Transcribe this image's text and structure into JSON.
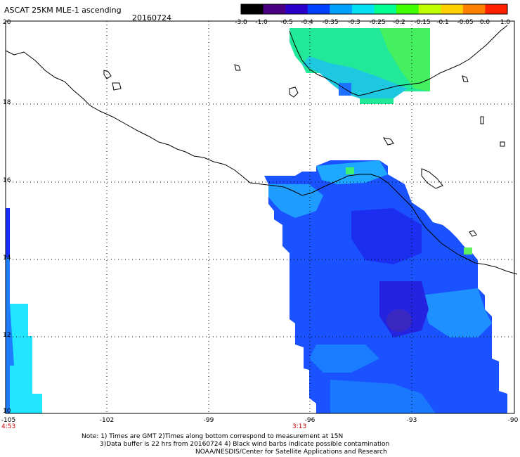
{
  "header": {
    "title": "ASCAT 25KM MLE-1 ascending",
    "date": "20160724"
  },
  "colorbar": {
    "ticks": [
      "-3.0",
      "-1.0",
      "-0.5",
      "-0.4",
      "-0.35",
      "-0.3",
      "-0.25",
      "-0.2",
      "-0.15",
      "-0.1",
      "-0.05",
      "0.0",
      "1.0"
    ],
    "colors": [
      "#000000",
      "#4a0080",
      "#2a00c8",
      "#0040ff",
      "#00a0ff",
      "#00e0f0",
      "#00ff90",
      "#40ff00",
      "#c0ff00",
      "#ffd000",
      "#ff8000",
      "#ff2000"
    ]
  },
  "axes": {
    "lat_labels": [
      "20",
      "18",
      "16",
      "14",
      "12",
      "10"
    ],
    "lon_labels": [
      "-105",
      "-102",
      "-99",
      "-96",
      "-93",
      "-90"
    ],
    "time_labels": [
      "4:53",
      "3:13"
    ]
  },
  "notes": {
    "line1": "Note: 1) Times are GMT 2)Times along bottom correspond to measurement at 15N",
    "line2": "3)Data buffer is 22 hrs from 20160724 4) Black wind barbs indicate possible contamination",
    "line3": "NOAA/NESDIS/Center for Satellite Applications and Research"
  }
}
